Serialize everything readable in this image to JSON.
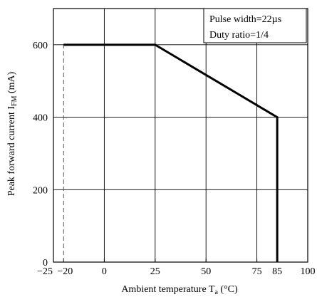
{
  "chart_data": {
    "type": "line",
    "xlabel": "Ambient  temperature T",
    "xlabel_sub": "a",
    "xlabel_unit": " (°C)",
    "ylabel": "Peak forward current I",
    "ylabel_sub": "FM",
    "ylabel_unit": " (mA)",
    "xlim": [
      -25,
      100
    ],
    "ylim": [
      0,
      700
    ],
    "grid": true,
    "x_ticks": [
      {
        "value": -25,
        "label": "−25"
      },
      {
        "value": -20,
        "label": "−20"
      },
      {
        "value": 0,
        "label": "0"
      },
      {
        "value": 25,
        "label": "25"
      },
      {
        "value": 50,
        "label": "50"
      },
      {
        "value": 75,
        "label": "75"
      },
      {
        "value": 85,
        "label": "85"
      },
      {
        "value": 100,
        "label": "100"
      }
    ],
    "x_grid": [
      0,
      25,
      50,
      75
    ],
    "y_ticks": [
      0,
      200,
      400,
      600
    ],
    "series": [
      {
        "x": [
          -20,
          25,
          85,
          85
        ],
        "y": [
          600,
          600,
          400,
          0
        ]
      }
    ],
    "reference_line": {
      "x": -20,
      "y": [
        0,
        600
      ]
    },
    "annotations": [
      "Pulse width=22µs",
      "Duty ratio=1/4"
    ]
  }
}
